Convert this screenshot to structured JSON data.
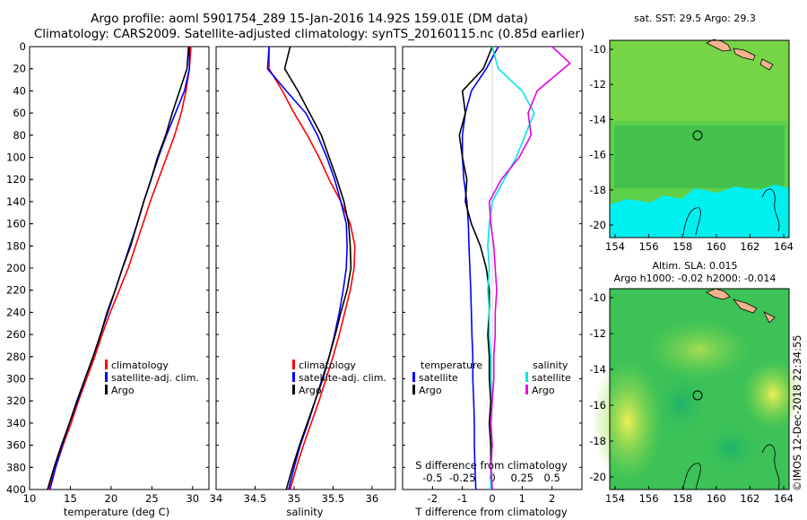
{
  "header": {
    "line1": "Argo profile: aoml 5901754_289 15-Jan-2016 14.92S 159.01E (DM data)",
    "line2": "Climatology: CARS2009. Satellite-adjusted climatology: synTS_20160115.nc (0.85d earlier)"
  },
  "colors": {
    "climatology": "#ff0000",
    "satellite": "#0000ff",
    "argo": "#000000",
    "s_satellite": "#00e5e5",
    "s_argo": "#e600e6",
    "sst_land_cyan": "#00f0f0"
  },
  "depth_axis": {
    "ticks": [
      "0",
      "20",
      "40",
      "60",
      "80",
      "100",
      "120",
      "140",
      "160",
      "180",
      "200",
      "220",
      "240",
      "260",
      "280",
      "300",
      "320",
      "340",
      "360",
      "380",
      "400"
    ]
  },
  "chart_data": [
    {
      "type": "line",
      "panel": "temperature",
      "xlabel": "temperature (deg C)",
      "ylabel": "depth",
      "xlim": [
        10,
        32
      ],
      "ylim": [
        400,
        0
      ],
      "xticks": [
        10,
        15,
        20,
        25,
        30
      ],
      "xtick_labels": [
        "10",
        "15",
        "20",
        "25",
        "30"
      ],
      "legend": [
        "climatology",
        "satellite-adj. clim.",
        "Argo"
      ],
      "series": [
        {
          "name": "climatology",
          "color": "#ff0000",
          "points": [
            [
              29.8,
              0
            ],
            [
              29.6,
              20
            ],
            [
              29.2,
              40
            ],
            [
              28.6,
              60
            ],
            [
              27.8,
              80
            ],
            [
              26.8,
              100
            ],
            [
              25.8,
              120
            ],
            [
              24.8,
              140
            ],
            [
              23.9,
              160
            ],
            [
              23.0,
              180
            ],
            [
              22.1,
              200
            ],
            [
              21.0,
              220
            ],
            [
              19.9,
              240
            ],
            [
              18.9,
              260
            ],
            [
              18.0,
              280
            ],
            [
              17.0,
              300
            ],
            [
              16.0,
              320
            ],
            [
              15.1,
              340
            ],
            [
              14.1,
              360
            ],
            [
              13.2,
              380
            ],
            [
              12.3,
              400
            ]
          ]
        },
        {
          "name": "satellite-adj. clim.",
          "color": "#0000ff",
          "points": [
            [
              29.6,
              0
            ],
            [
              29.6,
              20
            ],
            [
              29.0,
              40
            ],
            [
              27.9,
              60
            ],
            [
              26.8,
              80
            ],
            [
              25.8,
              100
            ],
            [
              24.9,
              120
            ],
            [
              24.0,
              140
            ],
            [
              23.2,
              160
            ],
            [
              22.3,
              180
            ],
            [
              21.4,
              200
            ],
            [
              20.5,
              220
            ],
            [
              19.6,
              240
            ],
            [
              18.7,
              260
            ],
            [
              17.8,
              280
            ],
            [
              16.8,
              300
            ],
            [
              15.9,
              320
            ],
            [
              14.9,
              340
            ],
            [
              14.0,
              360
            ],
            [
              13.2,
              380
            ],
            [
              12.5,
              400
            ]
          ]
        },
        {
          "name": "Argo",
          "color": "#000000",
          "points": [
            [
              29.5,
              0
            ],
            [
              29.3,
              20
            ],
            [
              28.4,
              40
            ],
            [
              27.5,
              60
            ],
            [
              26.7,
              80
            ],
            [
              25.7,
              100
            ],
            [
              24.9,
              120
            ],
            [
              24.0,
              140
            ],
            [
              23.2,
              160
            ],
            [
              22.4,
              180
            ],
            [
              21.4,
              200
            ],
            [
              20.5,
              220
            ],
            [
              19.5,
              240
            ],
            [
              18.7,
              260
            ],
            [
              17.8,
              280
            ],
            [
              16.8,
              300
            ],
            [
              15.8,
              320
            ],
            [
              14.9,
              340
            ],
            [
              13.9,
              360
            ],
            [
              13.0,
              380
            ],
            [
              12.2,
              400
            ]
          ]
        }
      ]
    },
    {
      "type": "line",
      "panel": "salinity",
      "xlabel": "salinity",
      "ylabel": "depth",
      "xlim": [
        34,
        36.3
      ],
      "ylim": [
        400,
        0
      ],
      "xticks": [
        34,
        34.5,
        35,
        35.5,
        36
      ],
      "xtick_labels": [
        "34",
        "34.5",
        "35",
        "35.5",
        "36"
      ],
      "legend": [
        "climatology",
        "satellite-adj. clim.",
        "Argo"
      ],
      "series": [
        {
          "name": "climatology",
          "color": "#ff0000",
          "points": [
            [
              34.68,
              0
            ],
            [
              34.68,
              20
            ],
            [
              34.85,
              40
            ],
            [
              35.0,
              60
            ],
            [
              35.17,
              80
            ],
            [
              35.32,
              100
            ],
            [
              35.45,
              120
            ],
            [
              35.6,
              140
            ],
            [
              35.72,
              160
            ],
            [
              35.78,
              180
            ],
            [
              35.77,
              200
            ],
            [
              35.72,
              220
            ],
            [
              35.65,
              240
            ],
            [
              35.58,
              260
            ],
            [
              35.5,
              280
            ],
            [
              35.41,
              300
            ],
            [
              35.32,
              320
            ],
            [
              35.22,
              340
            ],
            [
              35.12,
              360
            ],
            [
              35.03,
              380
            ],
            [
              34.95,
              400
            ]
          ]
        },
        {
          "name": "satellite-adj. clim.",
          "color": "#0000ff",
          "points": [
            [
              34.68,
              0
            ],
            [
              34.66,
              20
            ],
            [
              34.9,
              40
            ],
            [
              35.15,
              60
            ],
            [
              35.3,
              80
            ],
            [
              35.42,
              100
            ],
            [
              35.52,
              120
            ],
            [
              35.6,
              140
            ],
            [
              35.67,
              160
            ],
            [
              35.68,
              180
            ],
            [
              35.67,
              200
            ],
            [
              35.63,
              220
            ],
            [
              35.58,
              240
            ],
            [
              35.52,
              260
            ],
            [
              35.45,
              280
            ],
            [
              35.36,
              300
            ],
            [
              35.27,
              320
            ],
            [
              35.18,
              340
            ],
            [
              35.08,
              360
            ],
            [
              35.0,
              380
            ],
            [
              34.93,
              400
            ]
          ]
        },
        {
          "name": "Argo",
          "color": "#000000",
          "points": [
            [
              34.95,
              0
            ],
            [
              34.88,
              20
            ],
            [
              35.05,
              40
            ],
            [
              35.2,
              60
            ],
            [
              35.35,
              80
            ],
            [
              35.45,
              100
            ],
            [
              35.55,
              120
            ],
            [
              35.64,
              140
            ],
            [
              35.7,
              160
            ],
            [
              35.72,
              180
            ],
            [
              35.73,
              200
            ],
            [
              35.68,
              220
            ],
            [
              35.6,
              240
            ],
            [
              35.53,
              260
            ],
            [
              35.45,
              280
            ],
            [
              35.37,
              300
            ],
            [
              35.27,
              320
            ],
            [
              35.17,
              340
            ],
            [
              35.07,
              360
            ],
            [
              34.98,
              380
            ],
            [
              34.9,
              400
            ]
          ]
        }
      ]
    },
    {
      "type": "line",
      "panel": "differences",
      "xlabel": "T difference from climatology",
      "x2label": "S difference from climatology",
      "ylabel": "depth",
      "xlim": [
        -3,
        3
      ],
      "ylim": [
        400,
        0
      ],
      "xticks": [
        -2,
        -1,
        0,
        1,
        2
      ],
      "xtick_labels": [
        "-2",
        "-1",
        "0",
        "1",
        "2"
      ],
      "x2ticks_T": [
        -2,
        -1,
        0,
        1,
        2
      ],
      "x2tick_labels": [
        "-0.5",
        "-0.25",
        "0",
        "0.25",
        "0.5"
      ],
      "legend_temperature_title": "temperature",
      "legend_salinity_title": "salinity",
      "legend_temperature": [
        "satellite",
        "Argo"
      ],
      "legend_salinity": [
        "satellite",
        "Argo"
      ],
      "series": [
        {
          "name": "T satellite",
          "color": "#0000ff",
          "points": [
            [
              0.2,
              0
            ],
            [
              -0.2,
              20
            ],
            [
              -0.7,
              40
            ],
            [
              -0.9,
              60
            ],
            [
              -1.0,
              80
            ],
            [
              -1.0,
              100
            ],
            [
              -0.95,
              120
            ],
            [
              -0.85,
              140
            ],
            [
              -0.8,
              160
            ],
            [
              -0.78,
              180
            ],
            [
              -0.75,
              200
            ],
            [
              -0.72,
              220
            ],
            [
              -0.7,
              240
            ],
            [
              -0.68,
              260
            ],
            [
              -0.65,
              280
            ],
            [
              -0.65,
              300
            ],
            [
              -0.62,
              320
            ],
            [
              -0.6,
              340
            ],
            [
              -0.6,
              360
            ],
            [
              -0.58,
              380
            ],
            [
              -0.55,
              400
            ]
          ]
        },
        {
          "name": "T Argo",
          "color": "#000000",
          "points": [
            [
              0.0,
              0
            ],
            [
              -0.3,
              20
            ],
            [
              -1.0,
              40
            ],
            [
              -0.9,
              60
            ],
            [
              -1.1,
              80
            ],
            [
              -1.0,
              100
            ],
            [
              -0.85,
              120
            ],
            [
              -0.9,
              140
            ],
            [
              -0.7,
              160
            ],
            [
              -0.4,
              180
            ],
            [
              -0.2,
              200
            ],
            [
              -0.1,
              220
            ],
            [
              -0.1,
              240
            ],
            [
              -0.15,
              260
            ],
            [
              -0.1,
              280
            ],
            [
              -0.1,
              300
            ],
            [
              -0.05,
              320
            ],
            [
              -0.1,
              340
            ],
            [
              -0.05,
              360
            ],
            [
              -0.05,
              380
            ],
            [
              0.0,
              400
            ]
          ]
        },
        {
          "name": "S satellite",
          "color": "#00e5e5",
          "points": [
            [
              0.0,
              0
            ],
            [
              0.2,
              20
            ],
            [
              1.0,
              40
            ],
            [
              1.4,
              60
            ],
            [
              1.1,
              80
            ],
            [
              0.8,
              100
            ],
            [
              0.4,
              120
            ],
            [
              0.0,
              140
            ],
            [
              -0.1,
              160
            ],
            [
              -0.15,
              180
            ],
            [
              -0.1,
              200
            ],
            [
              -0.15,
              220
            ],
            [
              -0.1,
              240
            ],
            [
              -0.1,
              260
            ],
            [
              -0.05,
              280
            ],
            [
              -0.05,
              300
            ],
            [
              0.0,
              320
            ],
            [
              -0.05,
              340
            ],
            [
              0.0,
              360
            ],
            [
              -0.05,
              380
            ],
            [
              -0.05,
              400
            ]
          ]
        },
        {
          "name": "S Argo",
          "color": "#e600e6",
          "points": [
            [
              2.0,
              0
            ],
            [
              2.6,
              15
            ],
            [
              1.5,
              40
            ],
            [
              1.2,
              60
            ],
            [
              1.3,
              80
            ],
            [
              0.9,
              100
            ],
            [
              0.3,
              120
            ],
            [
              -0.1,
              140
            ],
            [
              -0.05,
              160
            ],
            [
              0.05,
              180
            ],
            [
              0.1,
              200
            ],
            [
              0.15,
              220
            ],
            [
              0.1,
              240
            ],
            [
              0.1,
              260
            ],
            [
              0.05,
              280
            ],
            [
              0.05,
              300
            ],
            [
              0.0,
              320
            ],
            [
              -0.05,
              340
            ],
            [
              0.0,
              360
            ],
            [
              -0.05,
              380
            ],
            [
              0.0,
              400
            ]
          ]
        }
      ]
    }
  ],
  "map_sst": {
    "title": "sat. SST: 29.5 Argo: 29.3",
    "lat_ticks": [
      "-10",
      "-12",
      "-14",
      "-16",
      "-18",
      "-20"
    ],
    "lon_ticks": [
      "154",
      "156",
      "158",
      "160",
      "162",
      "164"
    ]
  },
  "map_sla": {
    "title1": "Altim. SLA: 0.015",
    "title2": "Argo h1000: -0.02 h2000: -0.014",
    "lat_ticks": [
      "-10",
      "-12",
      "-14",
      "-16",
      "-18",
      "-20"
    ],
    "lon_ticks": [
      "154",
      "156",
      "158",
      "160",
      "162",
      "164"
    ]
  },
  "footer": {
    "stamp": "©IMOS 12-Dec-2018 22:34:55"
  }
}
